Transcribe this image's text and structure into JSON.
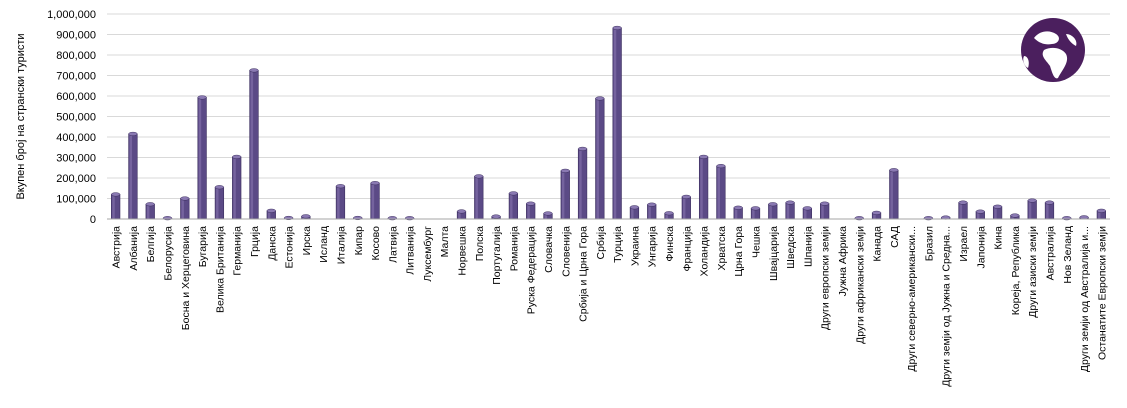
{
  "chart_data": {
    "type": "bar",
    "title": "",
    "xlabel": "",
    "ylabel": "Вкупен број на странски туристи",
    "ylim": [
      0,
      1000000
    ],
    "y_ticks": [
      "0",
      "100,000",
      "200,000",
      "300,000",
      "400,000",
      "500,000",
      "600,000",
      "700,000",
      "800,000",
      "900,000",
      "1,000,000"
    ],
    "grid": true,
    "legend": "none",
    "colors": {
      "bar": "#5b4a86",
      "bar_light": "#8a79b2",
      "bar_dark": "#3b2e5e",
      "grid": "#d9d9d9",
      "logo": "#4b1f5e"
    },
    "logo_icon": "globe-africa-icon",
    "categories": [
      "Австрија",
      "Албанија",
      "Белгија",
      "Белорусија",
      "Босна и Херцеговина",
      "Бугарија",
      "Велика Британија",
      "Германија",
      "Грција",
      "Данска",
      "Естонија",
      "Ирска",
      "Исланд",
      "Италија",
      "Кипар",
      "Косово",
      "Латвија",
      "Литванија",
      "Луксембург",
      "Малта",
      "Норвешка",
      "Полска",
      "Португалија",
      "Романија",
      "Руска Федерација",
      "Словачка",
      "Словенија",
      "Србија и Црна Гора",
      "Србија",
      "Турција",
      "Украина",
      "Унгарија",
      "Финска",
      "Франција",
      "Холандија",
      "Хрватска",
      "Црна Гора",
      "Чешка",
      "Швајцарија",
      "Шведска",
      "Шпанија",
      "Други европски земји",
      "Јужна Африка",
      "Други африкански земји",
      "Канада",
      "САД",
      "Други северно-американски...",
      "Бразил",
      "Други земји од Јужна и Средна...",
      "Израел",
      "Јапонија",
      "Кина",
      "Кореја, Република",
      "Други азиски земји",
      "Австралија",
      "Нов Зеланд",
      "Други земји од Австралија и...",
      "Останатите Европски земји"
    ],
    "values": [
      120000,
      415000,
      72000,
      4000,
      100000,
      593000,
      155000,
      303000,
      725000,
      40000,
      5000,
      13000,
      0,
      160000,
      5000,
      175000,
      4000,
      4000,
      0,
      0,
      37000,
      208000,
      12000,
      125000,
      75000,
      27000,
      235000,
      342000,
      588000,
      932000,
      57000,
      70000,
      28000,
      108000,
      303000,
      258000,
      55000,
      52000,
      72000,
      80000,
      52000,
      75000,
      0,
      4000,
      30000,
      238000,
      0,
      4000,
      7000,
      80000,
      36000,
      60000,
      17000,
      90000,
      80000,
      4000,
      8000,
      40000
    ]
  }
}
